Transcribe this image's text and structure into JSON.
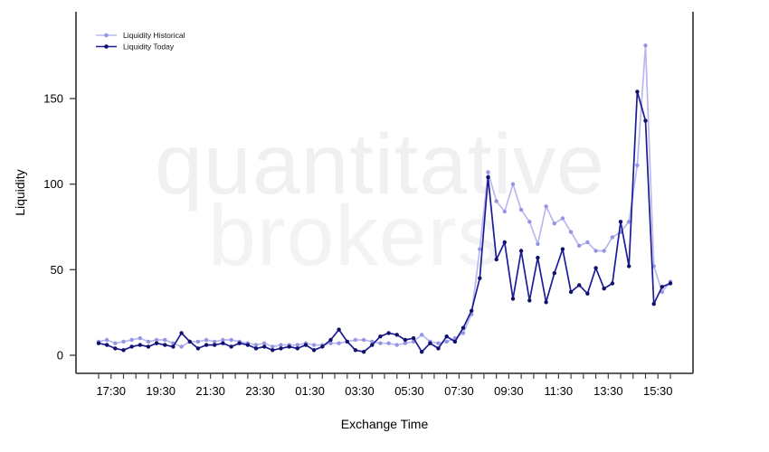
{
  "watermark": {
    "line1": "quantitative",
    "line2": "brokers"
  },
  "legend": {
    "items": [
      {
        "label": "Liquidity Historical"
      },
      {
        "label": "Liquidity Today"
      }
    ]
  },
  "colors": {
    "axis": "#444444",
    "tick_label": "#000000",
    "watermark_line1": "#f0f0f3",
    "watermark_line2": "#f3f3f6",
    "historical_line": "#b9b9ef",
    "historical_marker": "#9595e4",
    "today_line": "#1c1c96",
    "today_marker": "#10106a"
  },
  "chart_data": {
    "type": "line",
    "title": "",
    "xlabel": "Exchange Time",
    "ylabel": "Liquidity",
    "ylim": [
      0,
      190
    ],
    "grid": false,
    "legend_position": "top-left",
    "y_ticks": [
      0,
      50,
      100,
      150
    ],
    "x_minor_tick_minutes": 30,
    "x_labeled_ticks": [
      "17:30",
      "19:30",
      "21:30",
      "23:30",
      "01:30",
      "03:30",
      "05:30",
      "07:30",
      "09:30",
      "11:30",
      "13:30",
      "15:30"
    ],
    "times": [
      "17:00",
      "17:20",
      "17:40",
      "18:00",
      "18:20",
      "18:40",
      "19:00",
      "19:20",
      "19:40",
      "20:00",
      "20:20",
      "20:40",
      "21:00",
      "21:20",
      "21:40",
      "22:00",
      "22:20",
      "22:40",
      "23:00",
      "23:20",
      "23:40",
      "00:00",
      "00:20",
      "00:40",
      "01:00",
      "01:20",
      "01:40",
      "02:00",
      "02:20",
      "02:40",
      "03:00",
      "03:20",
      "03:40",
      "04:00",
      "04:20",
      "04:40",
      "05:00",
      "05:20",
      "05:40",
      "06:00",
      "06:20",
      "06:40",
      "07:00",
      "07:20",
      "07:40",
      "08:00",
      "08:20",
      "08:40",
      "09:00",
      "09:20",
      "09:40",
      "10:00",
      "10:20",
      "10:40",
      "11:00",
      "11:20",
      "11:40",
      "12:00",
      "12:20",
      "12:40",
      "13:00",
      "13:20",
      "13:40",
      "14:00",
      "14:20",
      "14:40",
      "15:00",
      "15:20",
      "15:40",
      "16:00"
    ],
    "series": [
      {
        "name": "Liquidity Historical",
        "values": [
          8,
          9,
          7,
          8,
          9,
          10,
          8,
          9,
          9,
          7,
          5,
          8,
          8,
          9,
          8,
          9,
          9,
          8,
          7,
          6,
          7,
          5,
          6,
          6,
          6,
          7,
          6,
          6,
          7,
          7,
          8,
          9,
          9,
          8,
          7,
          7,
          6,
          7,
          8,
          12,
          8,
          7,
          8,
          10,
          13,
          24,
          62,
          107,
          90,
          84,
          100,
          85,
          78,
          65,
          87,
          77,
          80,
          72,
          64,
          66,
          61,
          61,
          69,
          72,
          78,
          111,
          181,
          52,
          37,
          43
        ]
      },
      {
        "name": "Liquidity Today",
        "values": [
          7,
          6,
          4,
          3,
          5,
          6,
          5,
          7,
          6,
          5,
          13,
          8,
          4,
          6,
          6,
          7,
          5,
          7,
          6,
          4,
          5,
          3,
          4,
          5,
          4,
          6,
          3,
          5,
          9,
          15,
          8,
          3,
          2,
          6,
          11,
          13,
          12,
          9,
          10,
          2,
          7,
          4,
          11,
          8,
          16,
          26,
          45,
          104,
          56,
          66,
          33,
          61,
          32,
          57,
          31,
          48,
          62,
          37,
          41,
          36,
          51,
          39,
          42,
          78,
          52,
          154,
          137,
          30,
          40,
          42
        ]
      }
    ]
  }
}
